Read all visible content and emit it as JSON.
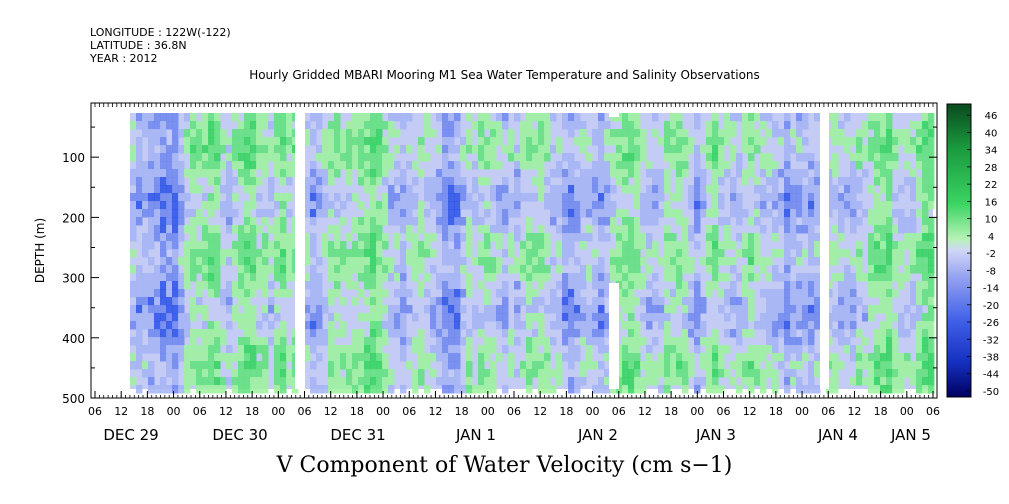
{
  "header": {
    "longitude": "LONGITUDE : 122W(-122)",
    "latitude": "LATITUDE : 36.8N",
    "year": "YEAR : 2012"
  },
  "title": "Hourly Gridded MBARI Mooring M1 Sea Water Temperature and Salinity Observations",
  "colors": {
    "neg_strong": "#000060",
    "neg_mid": "#2a50e6",
    "neg_weak": "#a5b4f4",
    "near_zero": "#c4ccf6",
    "pos_weak": "#9ef29e",
    "pos_mid": "#30d45a",
    "pos_strong": "#0a5a28"
  },
  "chart_data": {
    "type": "heatmap",
    "xlabel": "V Component of Water Velocity (cm s−1)",
    "ylabel": "DEPTH (m)",
    "x_range_hours": [
      "2012-12-28T06:00",
      "2013-01-05T07:00"
    ],
    "ylim": [
      500,
      10
    ],
    "y_ticks": [
      100,
      200,
      300,
      400,
      500
    ],
    "x_tick_labels": [
      "06",
      "12",
      "18",
      "00",
      "06",
      "12",
      "18",
      "00",
      "06",
      "12",
      "18",
      "00",
      "06",
      "12",
      "18",
      "00",
      "06",
      "12",
      "18",
      "00",
      "06",
      "12",
      "18",
      "00",
      "06",
      "12",
      "18",
      "00",
      "06",
      "12",
      "18",
      "00",
      "06"
    ],
    "date_labels": [
      "DEC 29",
      "DEC 30",
      "DEC 31",
      "JAN  1",
      "JAN  2",
      "JAN  3",
      "JAN  4",
      "JAN  5"
    ],
    "colorbar": {
      "labels": [
        "46",
        "40",
        "34",
        "28",
        "22",
        "16",
        "10",
        "4",
        "-2",
        "-8",
        "-14",
        "-20",
        "-26",
        "-32",
        "-38",
        "-44",
        "-50"
      ],
      "min": -50,
      "max": 50
    },
    "data_gaps": [
      "2012-12-30T22:00/2012-12-31T00:00",
      "2013-01-04T08:00/2013-01-04T10:00"
    ]
  }
}
